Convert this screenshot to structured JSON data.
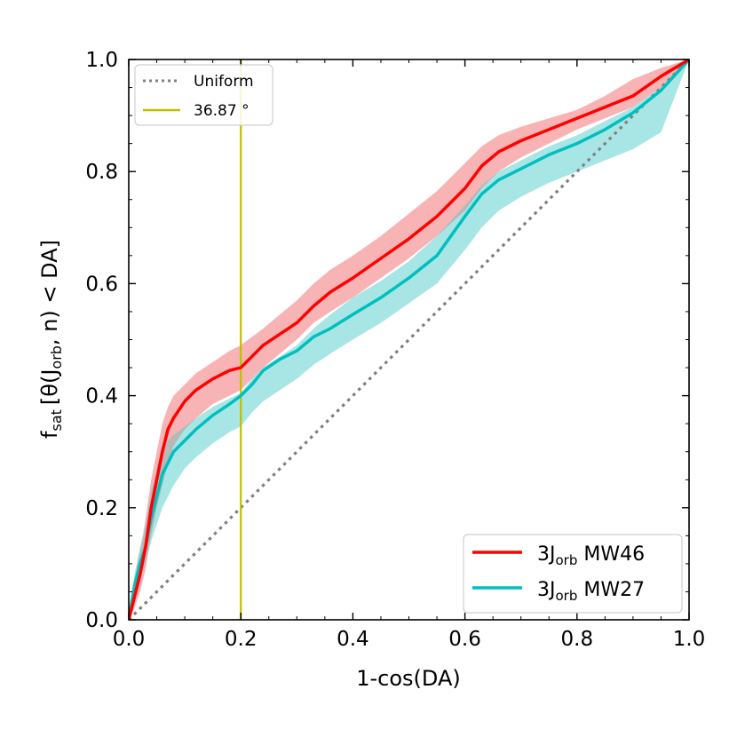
{
  "chart_data": {
    "type": "line",
    "xlabel": "1-cos(DA)",
    "ylabel": {
      "prefix": "f",
      "prefix_sub": "sat",
      "body_a": "[θ(J",
      "body_sub": "orb",
      "body_b": ", n) < DA]"
    },
    "xlim": [
      0.0,
      1.0
    ],
    "ylim": [
      0.0,
      1.0
    ],
    "x_ticks": [
      "0.0",
      "0.2",
      "0.4",
      "0.6",
      "0.8",
      "1.0"
    ],
    "y_ticks": [
      "0.0",
      "0.2",
      "0.4",
      "0.6",
      "0.8",
      "1.0"
    ],
    "legend_top_left": {
      "uniform": "Uniform",
      "angle": "36.87 °"
    },
    "legend_bottom_right": {
      "mw46": {
        "main": "3J",
        "sub": "orb",
        "tail": " MW46"
      },
      "mw27": {
        "main": "3J",
        "sub": "orb",
        "tail": " MW27"
      }
    },
    "colors": {
      "mw46_line": "#ff0000",
      "mw46_band": "#f8b4b4",
      "mw27_line": "#00bfbf",
      "mw27_band": "#a8e6e6",
      "overlap_band": "#b8b8b8",
      "uniform": "#808080",
      "vline": "#bfbf00"
    },
    "vertical_line_x": 0.2,
    "uniform": {
      "x": [
        0,
        1
      ],
      "y": [
        0,
        1
      ]
    },
    "series": [
      {
        "name": "3J_orb MW46",
        "x": [
          0.0,
          0.01,
          0.02,
          0.03,
          0.04,
          0.05,
          0.06,
          0.07,
          0.08,
          0.1,
          0.12,
          0.15,
          0.18,
          0.2,
          0.22,
          0.24,
          0.27,
          0.3,
          0.33,
          0.36,
          0.4,
          0.45,
          0.5,
          0.55,
          0.6,
          0.63,
          0.66,
          0.7,
          0.75,
          0.8,
          0.85,
          0.9,
          0.95,
          1.0
        ],
        "y": [
          0.0,
          0.04,
          0.08,
          0.13,
          0.2,
          0.25,
          0.3,
          0.34,
          0.36,
          0.39,
          0.41,
          0.43,
          0.445,
          0.45,
          0.47,
          0.49,
          0.51,
          0.53,
          0.56,
          0.585,
          0.61,
          0.645,
          0.68,
          0.72,
          0.77,
          0.81,
          0.835,
          0.855,
          0.875,
          0.895,
          0.915,
          0.935,
          0.97,
          1.0
        ],
        "upper": [
          0.0,
          0.07,
          0.12,
          0.18,
          0.25,
          0.3,
          0.35,
          0.38,
          0.4,
          0.42,
          0.44,
          0.46,
          0.48,
          0.49,
          0.505,
          0.52,
          0.545,
          0.57,
          0.6,
          0.625,
          0.65,
          0.685,
          0.725,
          0.765,
          0.815,
          0.845,
          0.865,
          0.88,
          0.895,
          0.91,
          0.935,
          0.965,
          0.985,
          1.0
        ],
        "lower": [
          0.0,
          0.02,
          0.05,
          0.09,
          0.15,
          0.2,
          0.24,
          0.28,
          0.31,
          0.34,
          0.36,
          0.385,
          0.4,
          0.41,
          0.43,
          0.45,
          0.475,
          0.5,
          0.53,
          0.55,
          0.575,
          0.61,
          0.645,
          0.685,
          0.73,
          0.77,
          0.8,
          0.825,
          0.85,
          0.875,
          0.895,
          0.915,
          0.95,
          1.0
        ]
      },
      {
        "name": "3J_orb MW27",
        "x": [
          0.0,
          0.01,
          0.02,
          0.03,
          0.04,
          0.05,
          0.06,
          0.07,
          0.08,
          0.1,
          0.12,
          0.15,
          0.18,
          0.2,
          0.22,
          0.24,
          0.27,
          0.3,
          0.33,
          0.36,
          0.4,
          0.45,
          0.5,
          0.55,
          0.6,
          0.63,
          0.66,
          0.7,
          0.75,
          0.8,
          0.85,
          0.9,
          0.95,
          1.0
        ],
        "y": [
          0.0,
          0.06,
          0.1,
          0.13,
          0.18,
          0.22,
          0.26,
          0.28,
          0.3,
          0.32,
          0.34,
          0.365,
          0.385,
          0.4,
          0.42,
          0.445,
          0.465,
          0.48,
          0.505,
          0.52,
          0.545,
          0.575,
          0.61,
          0.65,
          0.72,
          0.76,
          0.785,
          0.805,
          0.83,
          0.85,
          0.875,
          0.905,
          0.945,
          1.0
        ],
        "upper": [
          0.0,
          0.08,
          0.13,
          0.17,
          0.23,
          0.27,
          0.3,
          0.32,
          0.33,
          0.345,
          0.36,
          0.38,
          0.395,
          0.405,
          0.43,
          0.45,
          0.47,
          0.49,
          0.52,
          0.545,
          0.575,
          0.605,
          0.64,
          0.685,
          0.74,
          0.775,
          0.8,
          0.82,
          0.845,
          0.865,
          0.89,
          0.915,
          0.95,
          1.0
        ],
        "lower": [
          0.0,
          0.04,
          0.07,
          0.1,
          0.14,
          0.17,
          0.2,
          0.22,
          0.24,
          0.27,
          0.29,
          0.315,
          0.335,
          0.345,
          0.37,
          0.39,
          0.41,
          0.43,
          0.455,
          0.475,
          0.5,
          0.53,
          0.565,
          0.6,
          0.66,
          0.7,
          0.73,
          0.755,
          0.78,
          0.8,
          0.82,
          0.84,
          0.87,
          1.0
        ]
      }
    ]
  }
}
